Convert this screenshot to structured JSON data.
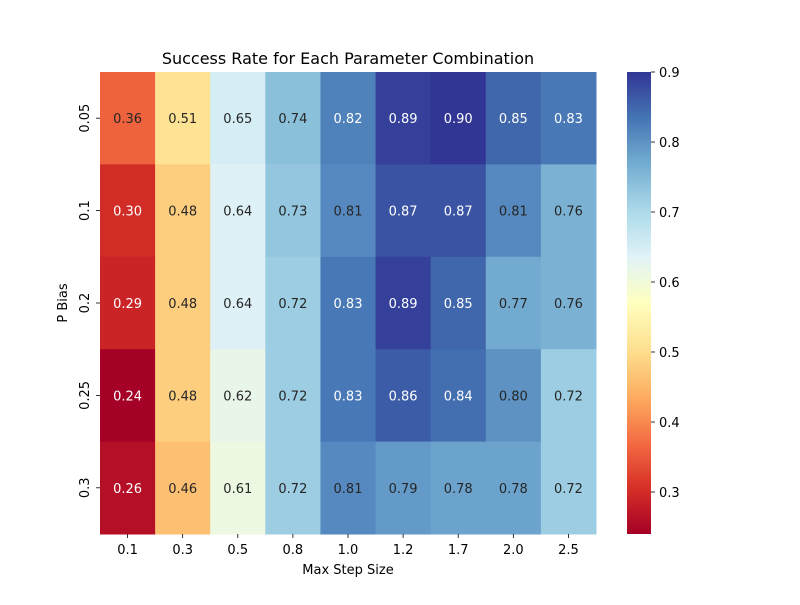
{
  "chart_data": {
    "type": "heatmap",
    "title": "Success Rate for Each Parameter Combination",
    "xlabel": "Max Step Size",
    "ylabel": "P Bias",
    "x_categories": [
      "0.1",
      "0.3",
      "0.5",
      "0.8",
      "1.0",
      "1.2",
      "1.7",
      "2.0",
      "2.5"
    ],
    "y_categories": [
      "0.05",
      "0.1",
      "0.2",
      "0.25",
      "0.3"
    ],
    "values": [
      [
        0.36,
        0.51,
        0.65,
        0.74,
        0.82,
        0.89,
        0.9,
        0.85,
        0.83
      ],
      [
        0.3,
        0.48,
        0.64,
        0.73,
        0.81,
        0.87,
        0.87,
        0.81,
        0.76
      ],
      [
        0.29,
        0.48,
        0.64,
        0.72,
        0.83,
        0.89,
        0.85,
        0.77,
        0.76
      ],
      [
        0.24,
        0.48,
        0.62,
        0.72,
        0.83,
        0.86,
        0.84,
        0.8,
        0.72
      ],
      [
        0.26,
        0.46,
        0.61,
        0.72,
        0.81,
        0.79,
        0.78,
        0.78,
        0.72
      ]
    ],
    "value_labels": [
      [
        "0.36",
        "0.51",
        "0.65",
        "0.74",
        "0.82",
        "0.89",
        "0.90",
        "0.85",
        "0.83"
      ],
      [
        "0.30",
        "0.48",
        "0.64",
        "0.73",
        "0.81",
        "0.87",
        "0.87",
        "0.81",
        "0.76"
      ],
      [
        "0.29",
        "0.48",
        "0.64",
        "0.72",
        "0.83",
        "0.89",
        "0.85",
        "0.77",
        "0.76"
      ],
      [
        "0.24",
        "0.48",
        "0.62",
        "0.72",
        "0.83",
        "0.86",
        "0.84",
        "0.80",
        "0.72"
      ],
      [
        "0.26",
        "0.46",
        "0.61",
        "0.72",
        "0.81",
        "0.79",
        "0.78",
        "0.78",
        "0.72"
      ]
    ],
    "colormap": "RdYlBu",
    "color_range": [
      0.24,
      0.9
    ],
    "colorbar_ticks": [
      "0.3",
      "0.4",
      "0.5",
      "0.6",
      "0.7",
      "0.8",
      "0.9"
    ],
    "colorbar_tick_values": [
      0.3,
      0.4,
      0.5,
      0.6,
      0.7,
      0.8,
      0.9
    ],
    "colormap_stops": [
      "#a50026",
      "#d73027",
      "#f46d43",
      "#fdae61",
      "#fee090",
      "#ffffbf",
      "#e0f3f8",
      "#abd9e9",
      "#74add1",
      "#4575b4",
      "#313695"
    ]
  }
}
